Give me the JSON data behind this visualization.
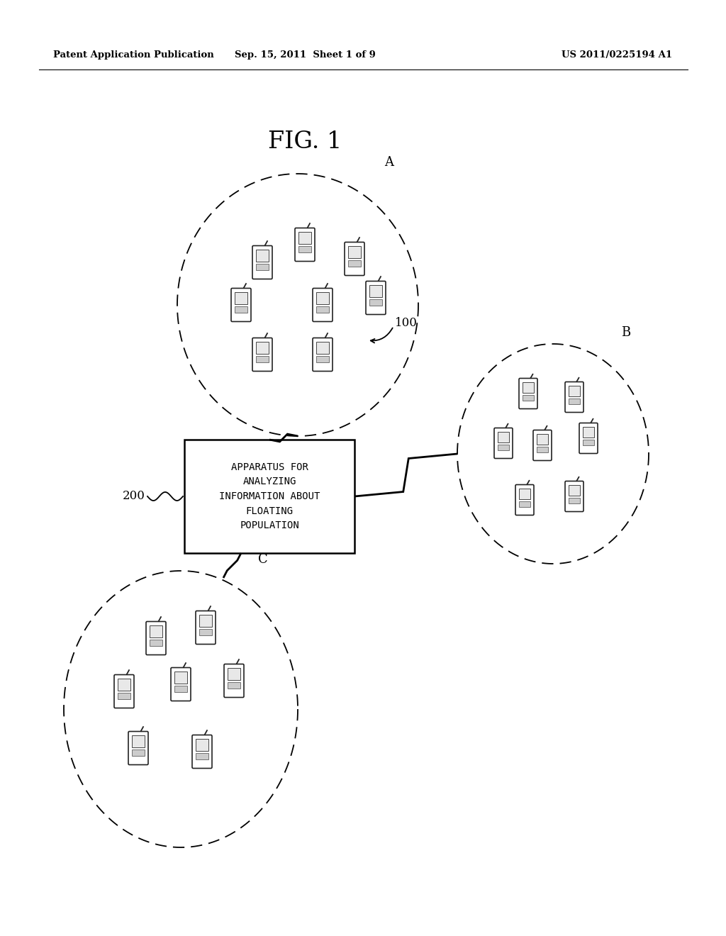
{
  "background_color": "#ffffff",
  "header_left": "Patent Application Publication",
  "header_mid": "Sep. 15, 2011  Sheet 1 of 9",
  "header_right": "US 2011/0225194 A1",
  "fig_label": "FIG. 1",
  "box_text": "APPARATUS FOR\nANALYZING\nINFORMATION ABOUT\nFLOATING\nPOPULATION"
}
